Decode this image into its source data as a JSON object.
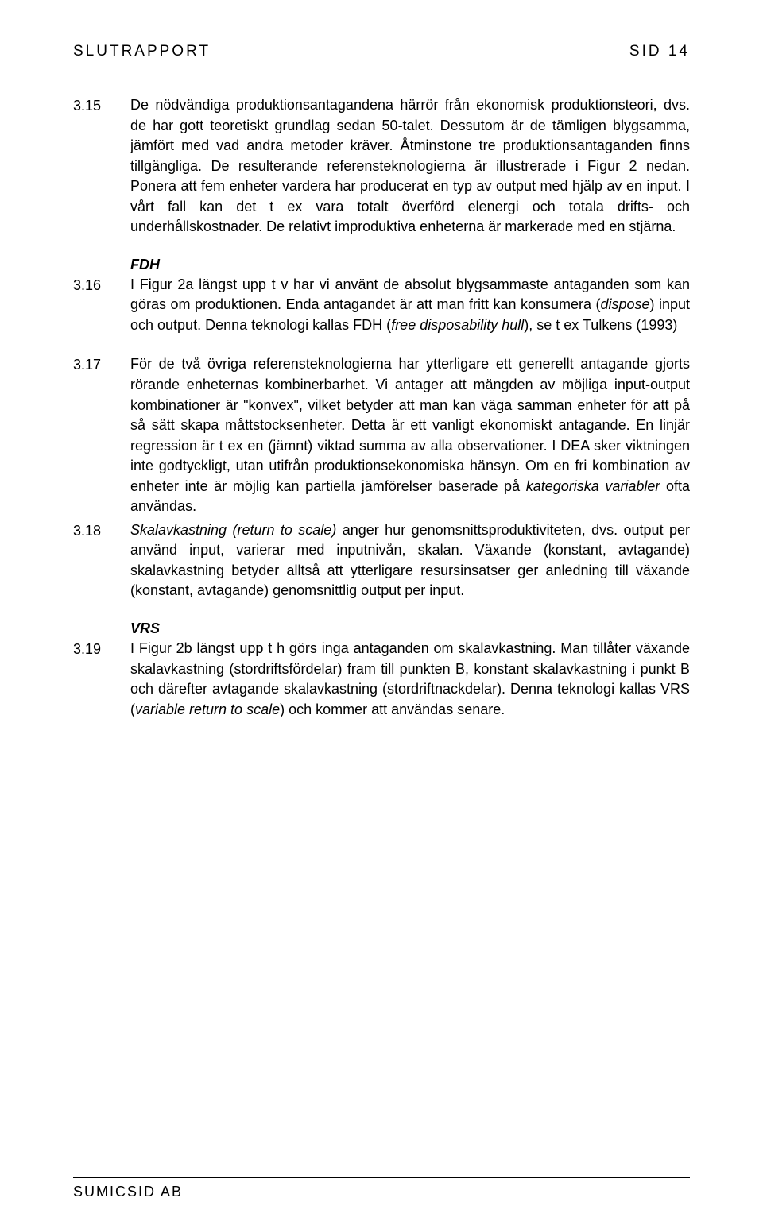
{
  "header": {
    "left": "SLUTRAPPORT",
    "right": "SID 14"
  },
  "paragraphs": {
    "p315": {
      "num": "3.15",
      "text": "De nödvändiga produktionsantagandena härrör från ekonomisk produktionsteori, dvs. de har gott teoretiskt grundlag sedan 50-talet. Dessutom är de tämligen blygsamma, jämfört med vad andra metoder kräver. Åtminstone tre produktionsantaganden finns tillgängliga. De resulterande referensteknologierna är illustrerade i Figur 2 nedan. Ponera att fem enheter vardera har producerat en typ av output med hjälp av en input. I vårt fall kan det t ex vara totalt överförd elenergi och totala drifts- och underhållskostnader. De relativt improduktiva enheterna är markerade med en stjärna."
    },
    "fdh_head": "FDH",
    "p316": {
      "num": "3.16",
      "text_a": "I Figur 2a längst upp t v har vi använt de absolut blygsammaste antaganden som kan göras om produktionen. Enda antagandet är att man fritt kan konsumera (",
      "italic_a": "dispose",
      "text_b": ") input och output. Denna teknologi kallas FDH (",
      "italic_b": "free disposability hull",
      "text_c": "), se t ex Tulkens (1993)"
    },
    "p317": {
      "num": "3.17",
      "text_a": "För de två övriga referensteknologierna har ytterligare ett generellt antagande gjorts rörande enheternas kombinerbarhet. Vi antager att mängden av möjliga input-output kombinationer är \"konvex\", vilket betyder att man kan väga samman enheter för att på så sätt skapa måttstocksenheter. Detta är ett vanligt ekonomiskt antagande. En linjär regression är t ex en (jämnt) viktad summa av alla observationer. I DEA sker viktningen inte godtyckligt, utan utifrån produktionsekonomiska hänsyn. Om en fri kombination av enheter inte är möjlig kan partiella jämförelser baserade på ",
      "italic_a": "kategoriska variabler",
      "text_b": " ofta användas."
    },
    "p318": {
      "num": "3.18",
      "italic_a": "Skalavkastning (return to scale)",
      "text_a": " anger hur genomsnittsproduktiviteten, dvs. output per använd input, varierar med inputnivån, skalan. Växande (konstant, avtagande) skalavkastning betyder alltså att ytterligare resursinsatser ger anledning till växande (konstant, avtagande) genomsnittlig output per input."
    },
    "vrs_head": "VRS",
    "p319": {
      "num": "3.19",
      "text_a": "I Figur 2b längst upp t h görs inga antaganden om skalavkastning. Man tillåter växande skalavkastning (stordriftsfördelar) fram till punkten B, konstant skalavkastning i punkt B och därefter avtagande skalavkastning (stordriftnackdelar). Denna teknologi kallas VRS (",
      "italic_a": "variable return to scale",
      "text_b": ") och kommer att användas senare."
    }
  },
  "footer": "SUMICSID AB"
}
